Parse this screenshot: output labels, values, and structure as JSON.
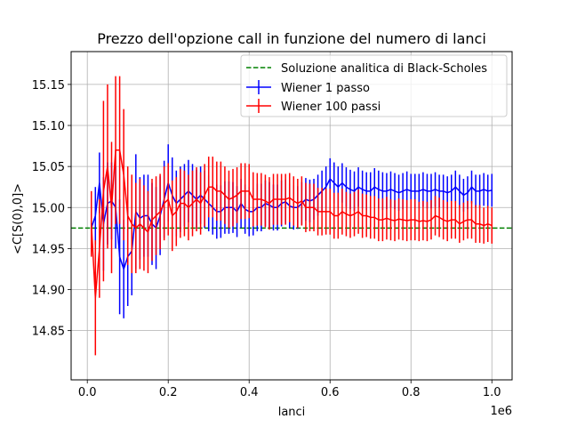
{
  "chart_data": {
    "type": "line",
    "title": "Prezzo dell'opzione call in funzione del numero di lanci",
    "xlabel": "lanci",
    "ylabel": "<C[S(0),0]>",
    "x_offset_label": "1e6",
    "xlim": [
      -40000,
      1050000
    ],
    "ylim": [
      14.79,
      15.19
    ],
    "xticks": [
      0,
      0.2,
      0.4,
      0.6,
      0.8,
      1.0
    ],
    "xtick_labels": [
      "0.0",
      "0.2",
      "0.4",
      "0.6",
      "0.8",
      "1.0"
    ],
    "yticks": [
      14.85,
      14.9,
      14.95,
      15.0,
      15.05,
      15.1,
      15.15
    ],
    "ytick_labels": [
      "14.85",
      "14.90",
      "14.95",
      "15.00",
      "15.05",
      "15.10",
      "15.15"
    ],
    "grid": true,
    "legend_position": "upper right",
    "reference_line": {
      "name": "Soluzione analitica di Black-Scholes",
      "y": 14.975,
      "color": "#008000",
      "style": "dashed"
    },
    "x": [
      10000,
      20000,
      30000,
      40000,
      50000,
      60000,
      70000,
      80000,
      90000,
      100000,
      110000,
      120000,
      130000,
      140000,
      150000,
      160000,
      170000,
      180000,
      190000,
      200000,
      210000,
      220000,
      230000,
      240000,
      250000,
      260000,
      270000,
      280000,
      290000,
      300000,
      310000,
      320000,
      330000,
      340000,
      350000,
      360000,
      370000,
      380000,
      390000,
      400000,
      410000,
      420000,
      430000,
      440000,
      450000,
      460000,
      470000,
      480000,
      490000,
      500000,
      510000,
      520000,
      530000,
      540000,
      550000,
      560000,
      570000,
      580000,
      590000,
      600000,
      610000,
      620000,
      630000,
      640000,
      650000,
      660000,
      670000,
      680000,
      690000,
      700000,
      710000,
      720000,
      730000,
      740000,
      750000,
      760000,
      770000,
      780000,
      790000,
      800000,
      810000,
      820000,
      830000,
      840000,
      850000,
      860000,
      870000,
      880000,
      890000,
      900000,
      910000,
      920000,
      930000,
      940000,
      950000,
      960000,
      970000,
      980000,
      990000,
      1000000
    ],
    "series": [
      {
        "name": "Wiener 1 passo",
        "color": "#0000ff",
        "values": [
          14.975,
          14.99,
          15.03,
          14.98,
          15.005,
          15.008,
          15.0,
          14.94,
          14.925,
          14.94,
          14.947,
          14.995,
          14.987,
          14.99,
          14.99,
          14.98,
          14.975,
          14.99,
          15.01,
          15.03,
          15.015,
          15.005,
          15.01,
          15.015,
          15.02,
          15.015,
          15.01,
          15.015,
          15.01,
          15.005,
          15.0,
          14.995,
          14.995,
          15.0,
          15.0,
          15.0,
          14.995,
          15.005,
          14.998,
          14.995,
          14.995,
          15.0,
          15.0,
          15.005,
          15.003,
          15.0,
          15.0,
          15.005,
          15.007,
          15.002,
          15.0,
          15.0,
          15.005,
          15.01,
          15.008,
          15.01,
          15.015,
          15.02,
          15.025,
          15.035,
          15.03,
          15.025,
          15.03,
          15.025,
          15.022,
          15.02,
          15.025,
          15.022,
          15.02,
          15.02,
          15.025,
          15.022,
          15.02,
          15.02,
          15.022,
          15.02,
          15.018,
          15.02,
          15.022,
          15.02,
          15.02,
          15.02,
          15.022,
          15.02,
          15.02,
          15.022,
          15.02,
          15.02,
          15.018,
          15.02,
          15.025,
          15.02,
          15.015,
          15.018,
          15.025,
          15.02,
          15.02,
          15.022,
          15.02,
          15.021
        ],
        "errors": [
          0.022,
          0.035,
          0.037,
          0.057,
          0.05,
          0.047,
          0.05,
          0.07,
          0.06,
          0.06,
          0.054,
          0.07,
          0.05,
          0.05,
          0.05,
          0.05,
          0.05,
          0.048,
          0.047,
          0.047,
          0.046,
          0.04,
          0.04,
          0.038,
          0.038,
          0.038,
          0.036,
          0.035,
          0.035,
          0.034,
          0.033,
          0.033,
          0.032,
          0.032,
          0.032,
          0.031,
          0.031,
          0.03,
          0.03,
          0.03,
          0.029,
          0.029,
          0.029,
          0.028,
          0.028,
          0.028,
          0.028,
          0.028,
          0.027,
          0.027,
          0.027,
          0.026,
          0.026,
          0.026,
          0.026,
          0.025,
          0.025,
          0.025,
          0.025,
          0.025,
          0.025,
          0.025,
          0.024,
          0.024,
          0.024,
          0.024,
          0.024,
          0.023,
          0.023,
          0.023,
          0.023,
          0.023,
          0.023,
          0.022,
          0.022,
          0.022,
          0.022,
          0.022,
          0.022,
          0.021,
          0.021,
          0.021,
          0.021,
          0.021,
          0.021,
          0.021,
          0.02,
          0.02,
          0.02,
          0.02,
          0.02,
          0.02,
          0.02,
          0.02,
          0.02,
          0.02,
          0.02,
          0.02,
          0.02,
          0.02
        ]
      },
      {
        "name": "Wiener 100 passi",
        "color": "#ff0000",
        "values": [
          14.98,
          14.89,
          14.95,
          15.02,
          15.05,
          15.0,
          15.07,
          15.07,
          15.04,
          14.99,
          14.98,
          14.975,
          14.98,
          14.975,
          14.97,
          14.985,
          14.99,
          14.995,
          15.005,
          15.01,
          14.99,
          14.995,
          15.005,
          15.005,
          15.0,
          15.005,
          15.01,
          15.005,
          15.015,
          15.025,
          15.025,
          15.02,
          15.02,
          15.015,
          15.01,
          15.012,
          15.015,
          15.02,
          15.02,
          15.02,
          15.01,
          15.01,
          15.01,
          15.008,
          15.005,
          15.01,
          15.01,
          15.01,
          15.01,
          15.012,
          15.008,
          15.005,
          15.008,
          15.0,
          15.0,
          15.0,
          14.995,
          14.995,
          14.995,
          14.995,
          14.99,
          14.99,
          14.995,
          14.992,
          14.99,
          14.992,
          14.995,
          14.99,
          14.99,
          14.988,
          14.988,
          14.985,
          14.985,
          14.987,
          14.985,
          14.984,
          14.986,
          14.985,
          14.984,
          14.985,
          14.985,
          14.983,
          14.984,
          14.983,
          14.985,
          14.99,
          14.988,
          14.985,
          14.983,
          14.985,
          14.985,
          14.98,
          14.983,
          14.985,
          14.985,
          14.98,
          14.98,
          14.978,
          14.98,
          14.978
        ],
        "errors": [
          0.04,
          0.07,
          0.06,
          0.11,
          0.1,
          0.08,
          0.09,
          0.09,
          0.08,
          0.06,
          0.06,
          0.055,
          0.055,
          0.052,
          0.05,
          0.05,
          0.048,
          0.046,
          0.045,
          0.044,
          0.043,
          0.042,
          0.042,
          0.04,
          0.04,
          0.04,
          0.039,
          0.038,
          0.038,
          0.037,
          0.037,
          0.036,
          0.036,
          0.035,
          0.035,
          0.035,
          0.034,
          0.034,
          0.034,
          0.033,
          0.033,
          0.032,
          0.032,
          0.032,
          0.032,
          0.031,
          0.031,
          0.031,
          0.031,
          0.03,
          0.03,
          0.03,
          0.03,
          0.03,
          0.029,
          0.029,
          0.029,
          0.029,
          0.028,
          0.028,
          0.028,
          0.028,
          0.028,
          0.027,
          0.027,
          0.027,
          0.027,
          0.027,
          0.026,
          0.026,
          0.026,
          0.026,
          0.026,
          0.026,
          0.025,
          0.025,
          0.025,
          0.025,
          0.025,
          0.025,
          0.025,
          0.024,
          0.024,
          0.024,
          0.024,
          0.024,
          0.024,
          0.024,
          0.024,
          0.023,
          0.023,
          0.023,
          0.023,
          0.023,
          0.023,
          0.023,
          0.023,
          0.022,
          0.022,
          0.022
        ]
      }
    ]
  }
}
